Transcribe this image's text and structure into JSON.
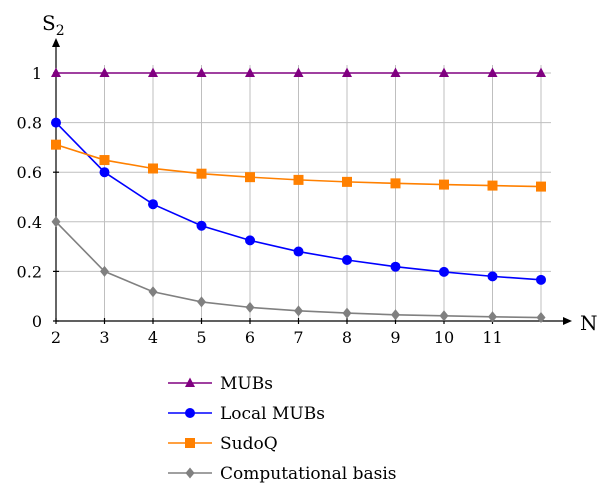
{
  "chart_data": {
    "type": "line",
    "title": "",
    "xlabel": "N",
    "ylabel": "S",
    "ylabel_subscript": "2",
    "x": [
      2,
      3,
      4,
      5,
      6,
      7,
      8,
      9,
      10,
      11,
      12
    ],
    "xticks": [
      "2",
      "3",
      "4",
      "5",
      "6",
      "7",
      "8",
      "9",
      "10",
      "11"
    ],
    "yticks": [
      "0",
      "0.2",
      "0.4",
      "0.6",
      "0.8",
      "1"
    ],
    "xlim": [
      2,
      12
    ],
    "ylim": [
      0,
      1
    ],
    "grid": true,
    "legend_position": "bottom",
    "series": [
      {
        "name": "MUBs",
        "color": "#800080",
        "marker": "triangle",
        "values": [
          1,
          1,
          1,
          1,
          1,
          1,
          1,
          1,
          1,
          1,
          1
        ]
      },
      {
        "name": "Local MUBs",
        "color": "#0000ff",
        "marker": "circle",
        "values": [
          0.8,
          0.6,
          0.471,
          0.384,
          0.325,
          0.28,
          0.246,
          0.219,
          0.198,
          0.18,
          0.166
        ]
      },
      {
        "name": "SudoQ",
        "color": "#ff8000",
        "marker": "square",
        "values": [
          0.711,
          0.649,
          0.615,
          0.594,
          0.58,
          0.569,
          0.561,
          0.555,
          0.55,
          0.546,
          0.542
        ]
      },
      {
        "name": "Computational basis",
        "color": "#808080",
        "marker": "diamond",
        "values": [
          0.4,
          0.2,
          0.118,
          0.077,
          0.055,
          0.041,
          0.032,
          0.025,
          0.021,
          0.017,
          0.014
        ]
      }
    ]
  }
}
